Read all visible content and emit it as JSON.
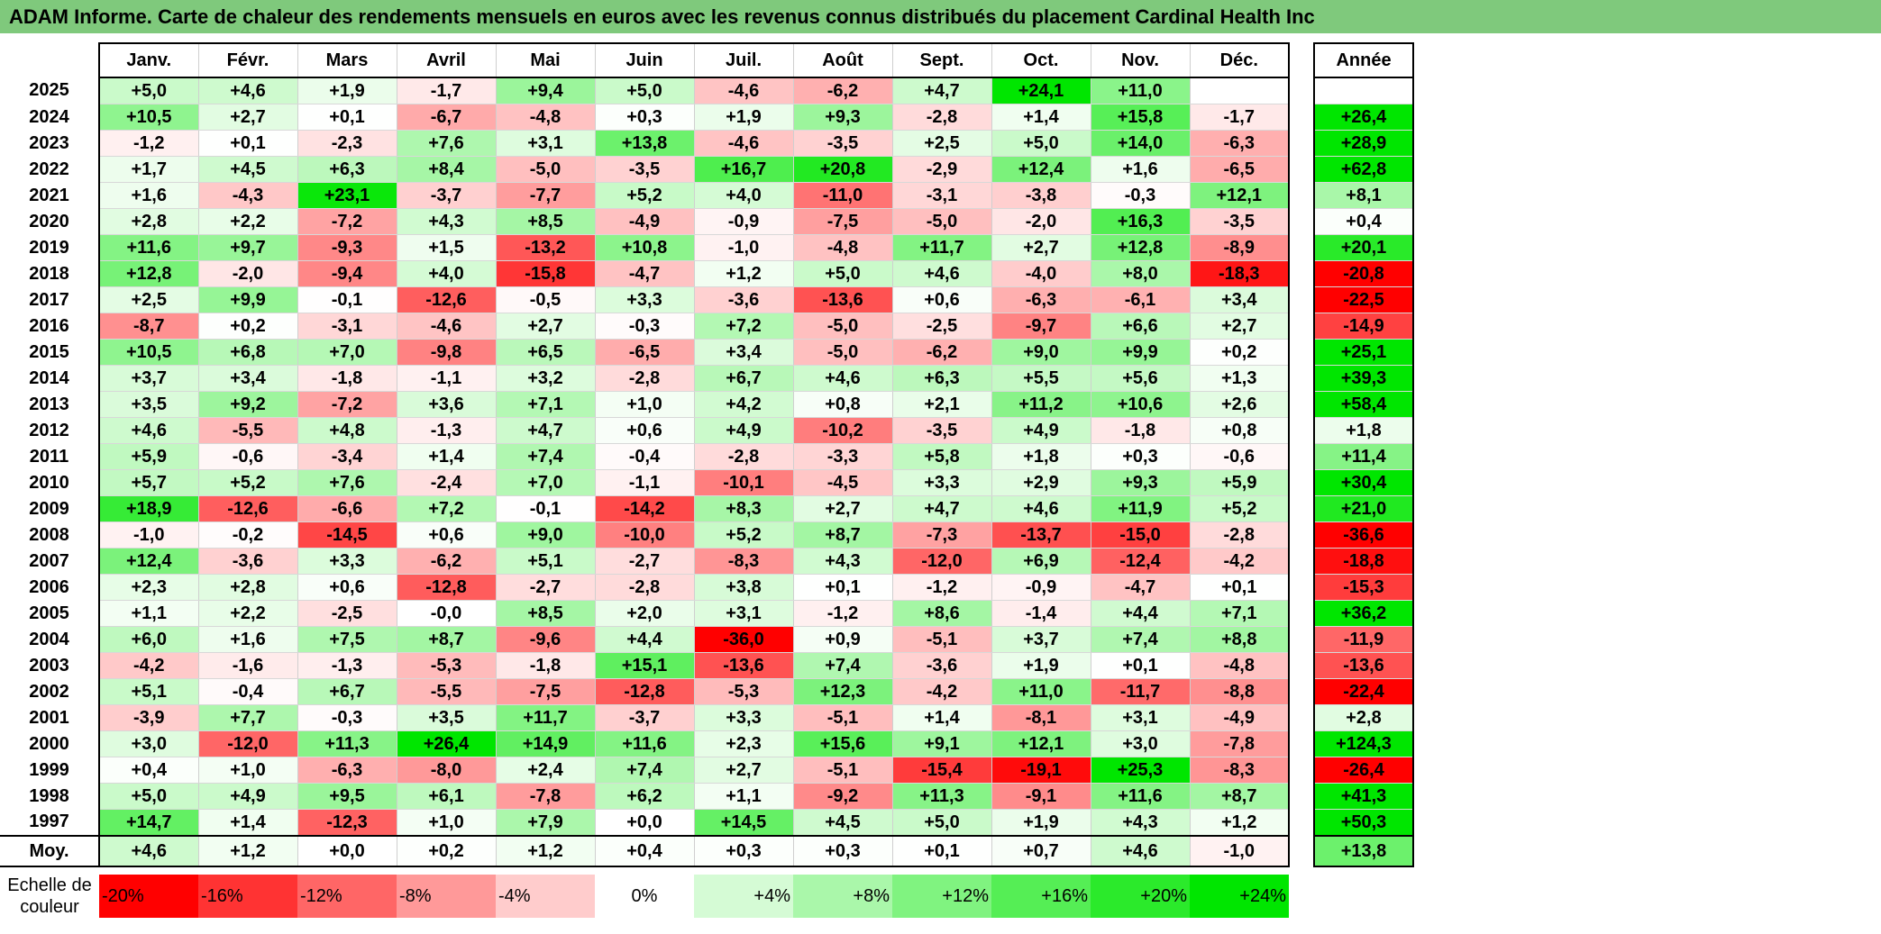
{
  "title": "ADAM Informe. Carte de chaleur des rendements mensuels en euros avec les revenus connus distribués du placement Cardinal Health Inc",
  "colors": {
    "title_bg": "#7fc97c",
    "max_red": "#ff0000",
    "max_green": "#00e600",
    "neutral": "#ffffff"
  },
  "chart_data": {
    "type": "heatmap",
    "months": [
      "Janv.",
      "Févr.",
      "Mars",
      "Avril",
      "Mai",
      "Juin",
      "Juil.",
      "Août",
      "Sept.",
      "Oct.",
      "Nov.",
      "Déc."
    ],
    "year_header": "Année",
    "rows": [
      {
        "year": "2025",
        "values": [
          "+5,0",
          "+4,6",
          "+1,9",
          "-1,7",
          "+9,4",
          "+5,0",
          "-4,6",
          "-6,2",
          "+4,7",
          "+24,1",
          "+11,0",
          ""
        ],
        "annual": ""
      },
      {
        "year": "2024",
        "values": [
          "+10,5",
          "+2,7",
          "+0,1",
          "-6,7",
          "-4,8",
          "+0,3",
          "+1,9",
          "+9,3",
          "-2,8",
          "+1,4",
          "+15,8",
          "-1,7"
        ],
        "annual": "+26,4"
      },
      {
        "year": "2023",
        "values": [
          "-1,2",
          "+0,1",
          "-2,3",
          "+7,6",
          "+3,1",
          "+13,8",
          "-4,6",
          "-3,5",
          "+2,5",
          "+5,0",
          "+14,0",
          "-6,3"
        ],
        "annual": "+28,9"
      },
      {
        "year": "2022",
        "values": [
          "+1,7",
          "+4,5",
          "+6,3",
          "+8,4",
          "-5,0",
          "-3,5",
          "+16,7",
          "+20,8",
          "-2,9",
          "+12,4",
          "+1,6",
          "-6,5"
        ],
        "annual": "+62,8"
      },
      {
        "year": "2021",
        "values": [
          "+1,6",
          "-4,3",
          "+23,1",
          "-3,7",
          "-7,7",
          "+5,2",
          "+4,0",
          "-11,0",
          "-3,1",
          "-3,8",
          "-0,3",
          "+12,1"
        ],
        "annual": "+8,1"
      },
      {
        "year": "2020",
        "values": [
          "+2,8",
          "+2,2",
          "-7,2",
          "+4,3",
          "+8,5",
          "-4,9",
          "-0,9",
          "-7,5",
          "-5,0",
          "-2,0",
          "+16,3",
          "-3,5"
        ],
        "annual": "+0,4"
      },
      {
        "year": "2019",
        "values": [
          "+11,6",
          "+9,7",
          "-9,3",
          "+1,5",
          "-13,2",
          "+10,8",
          "-1,0",
          "-4,8",
          "+11,7",
          "+2,7",
          "+12,8",
          "-8,9"
        ],
        "annual": "+20,1"
      },
      {
        "year": "2018",
        "values": [
          "+12,8",
          "-2,0",
          "-9,4",
          "+4,0",
          "-15,8",
          "-4,7",
          "+1,2",
          "+5,0",
          "+4,6",
          "-4,0",
          "+8,0",
          "-18,3"
        ],
        "annual": "-20,8"
      },
      {
        "year": "2017",
        "values": [
          "+2,5",
          "+9,9",
          "-0,1",
          "-12,6",
          "-0,5",
          "+3,3",
          "-3,6",
          "-13,6",
          "+0,6",
          "-6,3",
          "-6,1",
          "+3,4"
        ],
        "annual": "-22,5"
      },
      {
        "year": "2016",
        "values": [
          "-8,7",
          "+0,2",
          "-3,1",
          "-4,6",
          "+2,7",
          "-0,3",
          "+7,2",
          "-5,0",
          "-2,5",
          "-9,7",
          "+6,6",
          "+2,7"
        ],
        "annual": "-14,9"
      },
      {
        "year": "2015",
        "values": [
          "+10,5",
          "+6,8",
          "+7,0",
          "-9,8",
          "+6,5",
          "-6,5",
          "+3,4",
          "-5,0",
          "-6,2",
          "+9,0",
          "+9,9",
          "+0,2"
        ],
        "annual": "+25,1"
      },
      {
        "year": "2014",
        "values": [
          "+3,7",
          "+3,4",
          "-1,8",
          "-1,1",
          "+3,2",
          "-2,8",
          "+6,7",
          "+4,6",
          "+6,3",
          "+5,5",
          "+5,6",
          "+1,3"
        ],
        "annual": "+39,3"
      },
      {
        "year": "2013",
        "values": [
          "+3,5",
          "+9,2",
          "-7,2",
          "+3,6",
          "+7,1",
          "+1,0",
          "+4,2",
          "+0,8",
          "+2,1",
          "+11,2",
          "+10,6",
          "+2,6"
        ],
        "annual": "+58,4"
      },
      {
        "year": "2012",
        "values": [
          "+4,6",
          "-5,5",
          "+4,8",
          "-1,3",
          "+4,7",
          "+0,6",
          "+4,9",
          "-10,2",
          "-3,5",
          "+4,9",
          "-1,8",
          "+0,8"
        ],
        "annual": "+1,8"
      },
      {
        "year": "2011",
        "values": [
          "+5,9",
          "-0,6",
          "-3,4",
          "+1,4",
          "+7,4",
          "-0,4",
          "-2,8",
          "-3,3",
          "+5,8",
          "+1,8",
          "+0,3",
          "-0,6"
        ],
        "annual": "+11,4"
      },
      {
        "year": "2010",
        "values": [
          "+5,7",
          "+5,2",
          "+7,6",
          "-2,4",
          "+7,0",
          "-1,1",
          "-10,1",
          "-4,5",
          "+3,3",
          "+2,9",
          "+9,3",
          "+5,9"
        ],
        "annual": "+30,4"
      },
      {
        "year": "2009",
        "values": [
          "+18,9",
          "-12,6",
          "-6,6",
          "+7,2",
          "-0,1",
          "-14,2",
          "+8,3",
          "+2,7",
          "+4,7",
          "+4,6",
          "+11,9",
          "+5,2"
        ],
        "annual": "+21,0"
      },
      {
        "year": "2008",
        "values": [
          "-1,0",
          "-0,2",
          "-14,5",
          "+0,6",
          "+9,0",
          "-10,0",
          "+5,2",
          "+8,7",
          "-7,3",
          "-13,7",
          "-15,0",
          "-2,8"
        ],
        "annual": "-36,6"
      },
      {
        "year": "2007",
        "values": [
          "+12,4",
          "-3,6",
          "+3,3",
          "-6,2",
          "+5,1",
          "-2,7",
          "-8,3",
          "+4,3",
          "-12,0",
          "+6,9",
          "-12,4",
          "-4,2"
        ],
        "annual": "-18,8"
      },
      {
        "year": "2006",
        "values": [
          "+2,3",
          "+2,8",
          "+0,6",
          "-12,8",
          "-2,7",
          "-2,8",
          "+3,8",
          "+0,1",
          "-1,2",
          "-0,9",
          "-4,7",
          "+0,1"
        ],
        "annual": "-15,3"
      },
      {
        "year": "2005",
        "values": [
          "+1,1",
          "+2,2",
          "-2,5",
          "-0,0",
          "+8,5",
          "+2,0",
          "+3,1",
          "-1,2",
          "+8,6",
          "-1,4",
          "+4,4",
          "+7,1"
        ],
        "annual": "+36,2"
      },
      {
        "year": "2004",
        "values": [
          "+6,0",
          "+1,6",
          "+7,5",
          "+8,7",
          "-9,6",
          "+4,4",
          "-36,0",
          "+0,9",
          "-5,1",
          "+3,7",
          "+7,4",
          "+8,8"
        ],
        "annual": "-11,9"
      },
      {
        "year": "2003",
        "values": [
          "-4,2",
          "-1,6",
          "-1,3",
          "-5,3",
          "-1,8",
          "+15,1",
          "-13,6",
          "+7,4",
          "-3,6",
          "+1,9",
          "+0,1",
          "-4,8"
        ],
        "annual": "-13,6"
      },
      {
        "year": "2002",
        "values": [
          "+5,1",
          "-0,4",
          "+6,7",
          "-5,5",
          "-7,5",
          "-12,8",
          "-5,3",
          "+12,3",
          "-4,2",
          "+11,0",
          "-11,7",
          "-8,8"
        ],
        "annual": "-22,4"
      },
      {
        "year": "2001",
        "values": [
          "-3,9",
          "+7,7",
          "-0,3",
          "+3,5",
          "+11,7",
          "-3,7",
          "+3,3",
          "-5,1",
          "+1,4",
          "-8,1",
          "+3,1",
          "-4,9"
        ],
        "annual": "+2,8"
      },
      {
        "year": "2000",
        "values": [
          "+3,0",
          "-12,0",
          "+11,3",
          "+26,4",
          "+14,9",
          "+11,6",
          "+2,3",
          "+15,6",
          "+9,1",
          "+12,1",
          "+3,0",
          "-7,8"
        ],
        "annual": "+124,3"
      },
      {
        "year": "1999",
        "values": [
          "+0,4",
          "+1,0",
          "-6,3",
          "-8,0",
          "+2,4",
          "+7,4",
          "+2,7",
          "-5,1",
          "-15,4",
          "-19,1",
          "+25,3",
          "-8,3"
        ],
        "annual": "-26,4"
      },
      {
        "year": "1998",
        "values": [
          "+5,0",
          "+4,9",
          "+9,5",
          "+6,1",
          "-7,8",
          "+6,2",
          "+1,1",
          "-9,2",
          "+11,3",
          "-9,1",
          "+11,6",
          "+8,7"
        ],
        "annual": "+41,3"
      },
      {
        "year": "1997",
        "values": [
          "+14,7",
          "+1,4",
          "-12,3",
          "+1,0",
          "+7,9",
          "+0,0",
          "+14,5",
          "+4,5",
          "+5,0",
          "+1,9",
          "+4,3",
          "+1,2"
        ],
        "annual": "+50,3"
      }
    ],
    "average": {
      "label": "Moy.",
      "values": [
        "+4,6",
        "+1,2",
        "+0,0",
        "+0,2",
        "+1,2",
        "+0,4",
        "+0,3",
        "+0,3",
        "+0,1",
        "+0,7",
        "+4,6",
        "-1,0"
      ],
      "annual": "+13,8"
    },
    "scale": {
      "label": "Echelle de couleur",
      "steps": [
        "-20%",
        "-16%",
        "-12%",
        "-8%",
        "-4%",
        "0%",
        "+4%",
        "+8%",
        "+12%",
        "+16%",
        "+20%",
        "+24%"
      ]
    }
  }
}
